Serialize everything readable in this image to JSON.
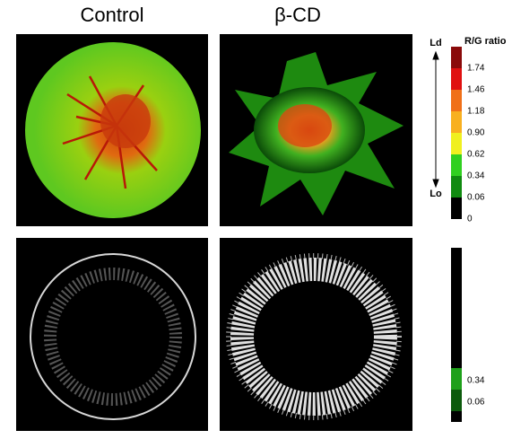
{
  "panels": {
    "columns": [
      "Control",
      "β-CD"
    ]
  },
  "colorbar_top": {
    "label": "R/G ratio",
    "top_end": "Ld",
    "bottom_end": "Lo",
    "ticks": [
      "1.74",
      "1.46",
      "1.18",
      "0.90",
      "0.62",
      "0.34",
      "0.06",
      "0"
    ]
  },
  "colorbar_bottom": {
    "ticks": [
      "0.34",
      "0.06"
    ]
  }
}
